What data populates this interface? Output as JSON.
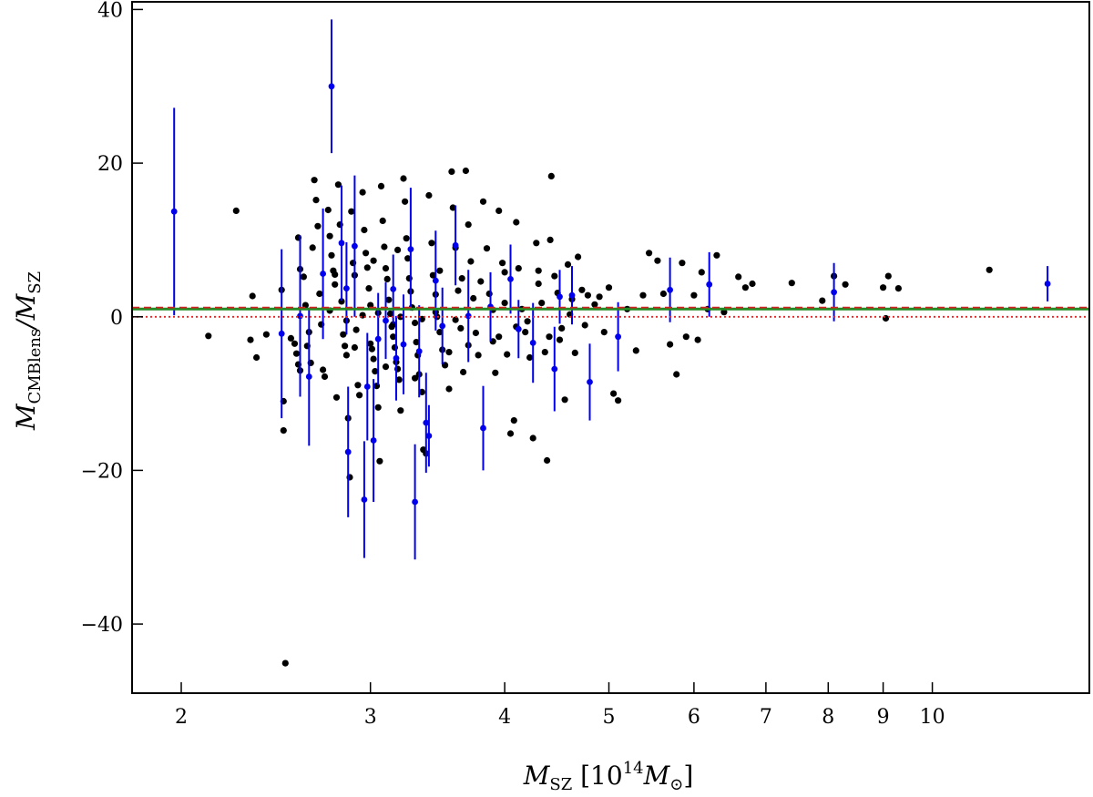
{
  "chart_data": {
    "type": "scatter",
    "title": "",
    "xscale": "log",
    "xlim": [
      1.8,
      14
    ],
    "ylim": [
      -49,
      41
    ],
    "xticks": [
      {
        "value": 2,
        "label": "2"
      },
      {
        "value": 3,
        "label": "3"
      },
      {
        "value": 4,
        "label": "4"
      },
      {
        "value": 5,
        "label": "5"
      },
      {
        "value": 6,
        "label": "6"
      },
      {
        "value": 7,
        "label": "7"
      },
      {
        "value": 8,
        "label": "8"
      },
      {
        "value": 9,
        "label": "9"
      },
      {
        "value": 10,
        "label": "10"
      }
    ],
    "yticks": [
      {
        "value": 40,
        "label": "40"
      },
      {
        "value": 20,
        "label": "20"
      },
      {
        "value": 0,
        "label": "0"
      },
      {
        "value": -20,
        "label": "−20"
      },
      {
        "value": -40,
        "label": "−40"
      }
    ],
    "xlabel": {
      "main": "M",
      "sub": "SZ",
      "unit_open": "[10",
      "unit_sup": "14",
      "unit_main": "M",
      "unit_sub": "⊙",
      "unit_close": "]"
    },
    "ylabel": {
      "main": "M",
      "sub1": "CMBlens",
      "slash": "/M",
      "sub2": "SZ"
    },
    "reference_lines": [
      {
        "y": 1.0,
        "color": "#228b22",
        "style": "solid"
      },
      {
        "y": 1.2,
        "color": "#cc2222",
        "style": "dashed"
      },
      {
        "y": 0.0,
        "color": "#ee2222",
        "style": "dotted"
      }
    ],
    "colors": {
      "black_points": "#000000",
      "blue_points": "#0000ee"
    },
    "series": [
      {
        "values_black": [
          [
            2.12,
            -2.5
          ],
          [
            2.25,
            13.8
          ],
          [
            2.33,
            2.7
          ],
          [
            2.32,
            -3.0
          ],
          [
            2.35,
            -5.3
          ],
          [
            2.4,
            -2.3
          ],
          [
            2.48,
            3.5
          ],
          [
            2.49,
            -11.0
          ],
          [
            2.49,
            -14.8
          ],
          [
            2.53,
            -2.8
          ],
          [
            2.55,
            -3.5
          ],
          [
            2.56,
            -4.8
          ],
          [
            2.57,
            -6.2
          ],
          [
            2.58,
            -7.0
          ],
          [
            2.57,
            10.3
          ],
          [
            2.58,
            6.2
          ],
          [
            2.6,
            5.2
          ],
          [
            2.61,
            1.5
          ],
          [
            2.63,
            -2.0
          ],
          [
            2.64,
            -6.0
          ],
          [
            2.66,
            17.8
          ],
          [
            2.67,
            15.2
          ],
          [
            2.68,
            11.8
          ],
          [
            2.69,
            3.0
          ],
          [
            2.7,
            -1.0
          ],
          [
            2.71,
            -6.9
          ],
          [
            2.72,
            -7.8
          ],
          [
            2.74,
            13.9
          ],
          [
            2.75,
            10.5
          ],
          [
            2.76,
            8.0
          ],
          [
            2.77,
            6.0
          ],
          [
            2.78,
            4.2
          ],
          [
            2.79,
            -10.5
          ],
          [
            2.8,
            17.2
          ],
          [
            2.81,
            12.0
          ],
          [
            2.82,
            2.0
          ],
          [
            2.83,
            -2.3
          ],
          [
            2.84,
            -3.8
          ],
          [
            2.85,
            -5.0
          ],
          [
            2.86,
            -13.2
          ],
          [
            2.87,
            -20.9
          ],
          [
            2.88,
            13.7
          ],
          [
            2.89,
            7.0
          ],
          [
            2.9,
            5.4
          ],
          [
            2.91,
            -1.7
          ],
          [
            2.92,
            -8.9
          ],
          [
            2.93,
            -10.2
          ],
          [
            2.95,
            16.2
          ],
          [
            2.96,
            11.3
          ],
          [
            2.97,
            8.3
          ],
          [
            2.98,
            6.4
          ],
          [
            2.99,
            3.7
          ],
          [
            3.0,
            -3.5
          ],
          [
            3.01,
            -4.2
          ],
          [
            3.02,
            -5.5
          ],
          [
            3.03,
            -7.1
          ],
          [
            3.04,
            -9.0
          ],
          [
            3.05,
            -11.8
          ],
          [
            3.06,
            -18.8
          ],
          [
            3.07,
            17.0
          ],
          [
            3.08,
            12.5
          ],
          [
            3.09,
            9.1
          ],
          [
            3.1,
            6.3
          ],
          [
            3.11,
            4.9
          ],
          [
            3.12,
            2.2
          ],
          [
            3.13,
            0.4
          ],
          [
            3.14,
            -1.3
          ],
          [
            3.15,
            -2.6
          ],
          [
            3.16,
            -4.0
          ],
          [
            3.17,
            -5.9
          ],
          [
            3.18,
            -6.8
          ],
          [
            3.19,
            -8.2
          ],
          [
            3.2,
            -12.2
          ],
          [
            3.22,
            18.0
          ],
          [
            3.23,
            15.0
          ],
          [
            3.24,
            10.2
          ],
          [
            3.25,
            7.6
          ],
          [
            3.26,
            5.0
          ],
          [
            3.27,
            3.3
          ],
          [
            3.28,
            1.2
          ],
          [
            3.3,
            -0.8
          ],
          [
            3.31,
            -3.3
          ],
          [
            3.32,
            -5.0
          ],
          [
            3.33,
            -7.5
          ],
          [
            3.35,
            -9.8
          ],
          [
            3.36,
            -17.3
          ],
          [
            3.38,
            -17.8
          ],
          [
            3.4,
            15.8
          ],
          [
            3.42,
            9.6
          ],
          [
            3.43,
            5.4
          ],
          [
            3.45,
            2.9
          ],
          [
            3.46,
            0.0
          ],
          [
            3.48,
            -2.0
          ],
          [
            3.5,
            -4.3
          ],
          [
            3.52,
            -6.3
          ],
          [
            3.55,
            -9.4
          ],
          [
            3.57,
            18.9
          ],
          [
            3.58,
            14.2
          ],
          [
            3.6,
            9.0
          ],
          [
            3.62,
            3.4
          ],
          [
            3.64,
            -1.5
          ],
          [
            3.66,
            -7.2
          ],
          [
            3.68,
            19.0
          ],
          [
            3.7,
            12.0
          ],
          [
            3.72,
            7.2
          ],
          [
            3.74,
            2.4
          ],
          [
            3.76,
            -2.1
          ],
          [
            3.78,
            -5.0
          ],
          [
            3.82,
            15.0
          ],
          [
            3.85,
            8.9
          ],
          [
            3.87,
            3.0
          ],
          [
            3.9,
            -3.2
          ],
          [
            3.92,
            -7.3
          ],
          [
            3.95,
            13.8
          ],
          [
            3.98,
            7.0
          ],
          [
            4.0,
            1.8
          ],
          [
            4.02,
            -4.9
          ],
          [
            4.05,
            -15.2
          ],
          [
            4.08,
            -13.5
          ],
          [
            4.1,
            12.3
          ],
          [
            4.12,
            6.3
          ],
          [
            4.15,
            1.0
          ],
          [
            4.18,
            -2.0
          ],
          [
            4.22,
            -5.3
          ],
          [
            4.25,
            -15.8
          ],
          [
            4.28,
            9.6
          ],
          [
            4.3,
            4.3
          ],
          [
            4.33,
            1.8
          ],
          [
            4.36,
            -4.6
          ],
          [
            4.38,
            -18.7
          ],
          [
            4.41,
            10.0
          ],
          [
            4.42,
            18.3
          ],
          [
            4.45,
            5.3
          ],
          [
            4.48,
            3.1
          ],
          [
            4.5,
            -3.0
          ],
          [
            4.52,
            -1.5
          ],
          [
            4.55,
            -10.8
          ],
          [
            4.58,
            6.8
          ],
          [
            4.62,
            2.3
          ],
          [
            4.65,
            -4.7
          ],
          [
            4.68,
            7.8
          ],
          [
            4.72,
            3.5
          ],
          [
            4.75,
            -1.1
          ],
          [
            4.78,
            2.8
          ],
          [
            4.85,
            1.6
          ],
          [
            4.9,
            2.6
          ],
          [
            4.95,
            -2.0
          ],
          [
            5.0,
            3.8
          ],
          [
            5.05,
            -10.0
          ],
          [
            5.1,
            -10.9
          ],
          [
            5.2,
            1.0
          ],
          [
            5.3,
            -4.4
          ],
          [
            5.38,
            2.8
          ],
          [
            5.45,
            8.3
          ],
          [
            5.55,
            7.3
          ],
          [
            5.62,
            3.0
          ],
          [
            5.7,
            -3.6
          ],
          [
            5.78,
            -7.5
          ],
          [
            5.85,
            7.0
          ],
          [
            5.9,
            -2.6
          ],
          [
            6.0,
            2.8
          ],
          [
            6.05,
            -3.0
          ],
          [
            6.1,
            5.8
          ],
          [
            6.18,
            1.0
          ],
          [
            6.3,
            8.0
          ],
          [
            6.4,
            0.6
          ],
          [
            6.6,
            5.2
          ],
          [
            6.7,
            3.8
          ],
          [
            6.8,
            4.3
          ],
          [
            7.4,
            4.4
          ],
          [
            7.9,
            2.1
          ],
          [
            8.1,
            5.3
          ],
          [
            8.3,
            4.2
          ],
          [
            9.0,
            3.8
          ],
          [
            9.05,
            -0.2
          ],
          [
            9.1,
            5.3
          ],
          [
            9.3,
            3.7
          ],
          [
            11.3,
            6.1
          ],
          [
            2.5,
            -45.1
          ],
          [
            2.95,
            0.2
          ],
          [
            3.05,
            0.5
          ],
          [
            3.2,
            0.0
          ],
          [
            3.35,
            -0.3
          ],
          [
            2.75,
            0.8
          ],
          [
            2.85,
            -0.5
          ],
          [
            3.0,
            1.5
          ],
          [
            3.15,
            -1.0
          ],
          [
            3.45,
            0.6
          ],
          [
            3.6,
            -0.4
          ],
          [
            3.9,
            0.9
          ],
          [
            4.2,
            -0.6
          ],
          [
            4.6,
            0.3
          ],
          [
            2.65,
            9.0
          ],
          [
            2.78,
            5.5
          ],
          [
            3.02,
            7.3
          ],
          [
            3.18,
            8.7
          ],
          [
            3.48,
            6.0
          ],
          [
            3.65,
            5.0
          ],
          [
            3.8,
            4.6
          ],
          [
            4.0,
            5.8
          ],
          [
            4.3,
            6.0
          ],
          [
            2.9,
            -4.0
          ],
          [
            3.1,
            -6.5
          ],
          [
            3.3,
            -8.0
          ],
          [
            3.55,
            -4.6
          ],
          [
            3.7,
            -3.7
          ],
          [
            3.95,
            -2.6
          ],
          [
            4.1,
            -1.3
          ],
          [
            4.4,
            -2.6
          ],
          [
            2.62,
            -3.8
          ]
        ]
      },
      {
        "values_blue": [
          {
            "x": 1.97,
            "y": 13.7,
            "err": 13.5
          },
          {
            "x": 2.48,
            "y": -2.2,
            "err": 11.0
          },
          {
            "x": 2.58,
            "y": 0.1,
            "err": 10.5
          },
          {
            "x": 2.63,
            "y": -7.8,
            "err": 9.0
          },
          {
            "x": 2.71,
            "y": 5.6,
            "err": 8.5
          },
          {
            "x": 2.76,
            "y": 30.0,
            "err": 8.7
          },
          {
            "x": 2.82,
            "y": 9.6,
            "err": 7.5
          },
          {
            "x": 2.85,
            "y": 3.7,
            "err": 6.0
          },
          {
            "x": 2.86,
            "y": -17.6,
            "err": 8.5
          },
          {
            "x": 2.9,
            "y": 9.2,
            "err": 9.2
          },
          {
            "x": 2.96,
            "y": -23.8,
            "err": 7.6
          },
          {
            "x": 2.98,
            "y": -9.1,
            "err": 7.0
          },
          {
            "x": 3.02,
            "y": -16.1,
            "err": 8.0
          },
          {
            "x": 3.05,
            "y": -2.9,
            "err": 6.0
          },
          {
            "x": 3.1,
            "y": -0.5,
            "err": 5.0
          },
          {
            "x": 3.15,
            "y": 3.6,
            "err": 4.5
          },
          {
            "x": 3.17,
            "y": -5.4,
            "err": 5.5
          },
          {
            "x": 3.22,
            "y": -3.6,
            "err": 6.5
          },
          {
            "x": 3.27,
            "y": 8.8,
            "err": 8.0
          },
          {
            "x": 3.3,
            "y": -24.1,
            "err": 7.5
          },
          {
            "x": 3.33,
            "y": -4.5,
            "err": 6.0
          },
          {
            "x": 3.38,
            "y": -13.8,
            "err": 6.5
          },
          {
            "x": 3.4,
            "y": -15.5,
            "err": 4.0
          },
          {
            "x": 3.45,
            "y": 4.7,
            "err": 6.5
          },
          {
            "x": 3.5,
            "y": -1.2,
            "err": 5.0
          },
          {
            "x": 3.6,
            "y": 9.3,
            "err": 5.2
          },
          {
            "x": 3.7,
            "y": 0.1,
            "err": 6.0
          },
          {
            "x": 3.82,
            "y": -14.5,
            "err": 5.5
          },
          {
            "x": 3.88,
            "y": 1.3,
            "err": 4.5
          },
          {
            "x": 4.05,
            "y": 4.9,
            "err": 4.5
          },
          {
            "x": 4.12,
            "y": -1.6,
            "err": 3.8
          },
          {
            "x": 4.25,
            "y": -3.4,
            "err": 5.2
          },
          {
            "x": 4.45,
            "y": -6.8,
            "err": 5.5
          },
          {
            "x": 4.5,
            "y": 2.6,
            "err": 3.5
          },
          {
            "x": 4.62,
            "y": 2.8,
            "err": 3.8
          },
          {
            "x": 4.8,
            "y": -8.5,
            "err": 5.0
          },
          {
            "x": 5.1,
            "y": -2.6,
            "err": 4.5
          },
          {
            "x": 5.7,
            "y": 3.5,
            "err": 4.2
          },
          {
            "x": 6.2,
            "y": 4.2,
            "err": 4.2
          },
          {
            "x": 8.1,
            "y": 3.2,
            "err": 3.8
          },
          {
            "x": 12.8,
            "y": 4.3,
            "err": 2.3
          }
        ]
      }
    ]
  }
}
